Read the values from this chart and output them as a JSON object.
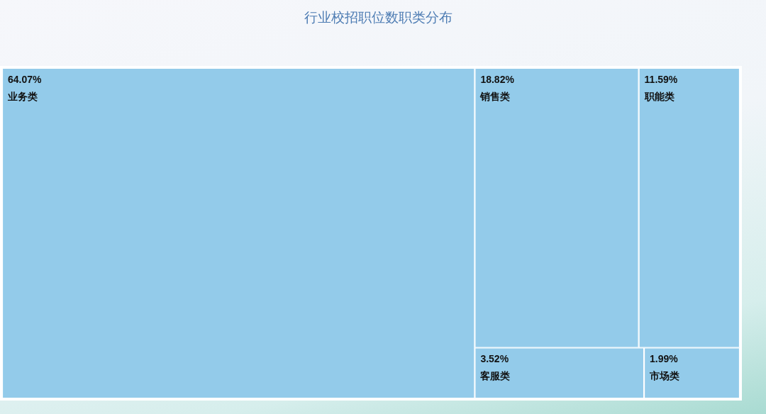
{
  "chart_data": {
    "type": "other",
    "title": "行业校招职位数职类分布",
    "categories": [
      "业务类",
      "销售类",
      "职能类",
      "客服类",
      "市场类"
    ],
    "values": [
      64.07,
      18.82,
      11.59,
      3.52,
      1.99
    ],
    "value_labels": [
      "64.07%",
      "18.82%",
      "11.59%",
      "3.52%",
      "1.99%"
    ],
    "color": "#93cbea"
  }
}
